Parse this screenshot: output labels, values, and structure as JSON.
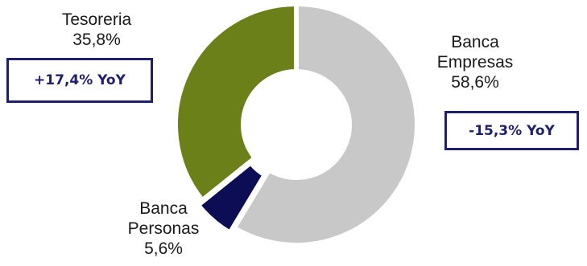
{
  "chart_data": {
    "type": "pie",
    "donut": true,
    "title": "",
    "slices": [
      {
        "line1": "Banca",
        "line2": "Empresas",
        "percent_label": "58,6%",
        "value": 58.6,
        "color": "#c8c8c8"
      },
      {
        "line1": "Banca",
        "line2": "Personas",
        "percent_label": "5,6%",
        "value": 5.6,
        "color": "#0d0d55"
      },
      {
        "line1": "Tesoreria",
        "line2": "",
        "percent_label": "35,8%",
        "value": 35.8,
        "color": "#6b8019"
      }
    ],
    "annotations": {
      "tesoreria_yoy": "+17,4% YoY",
      "empresas_yoy": "-15,3% YoY"
    }
  }
}
